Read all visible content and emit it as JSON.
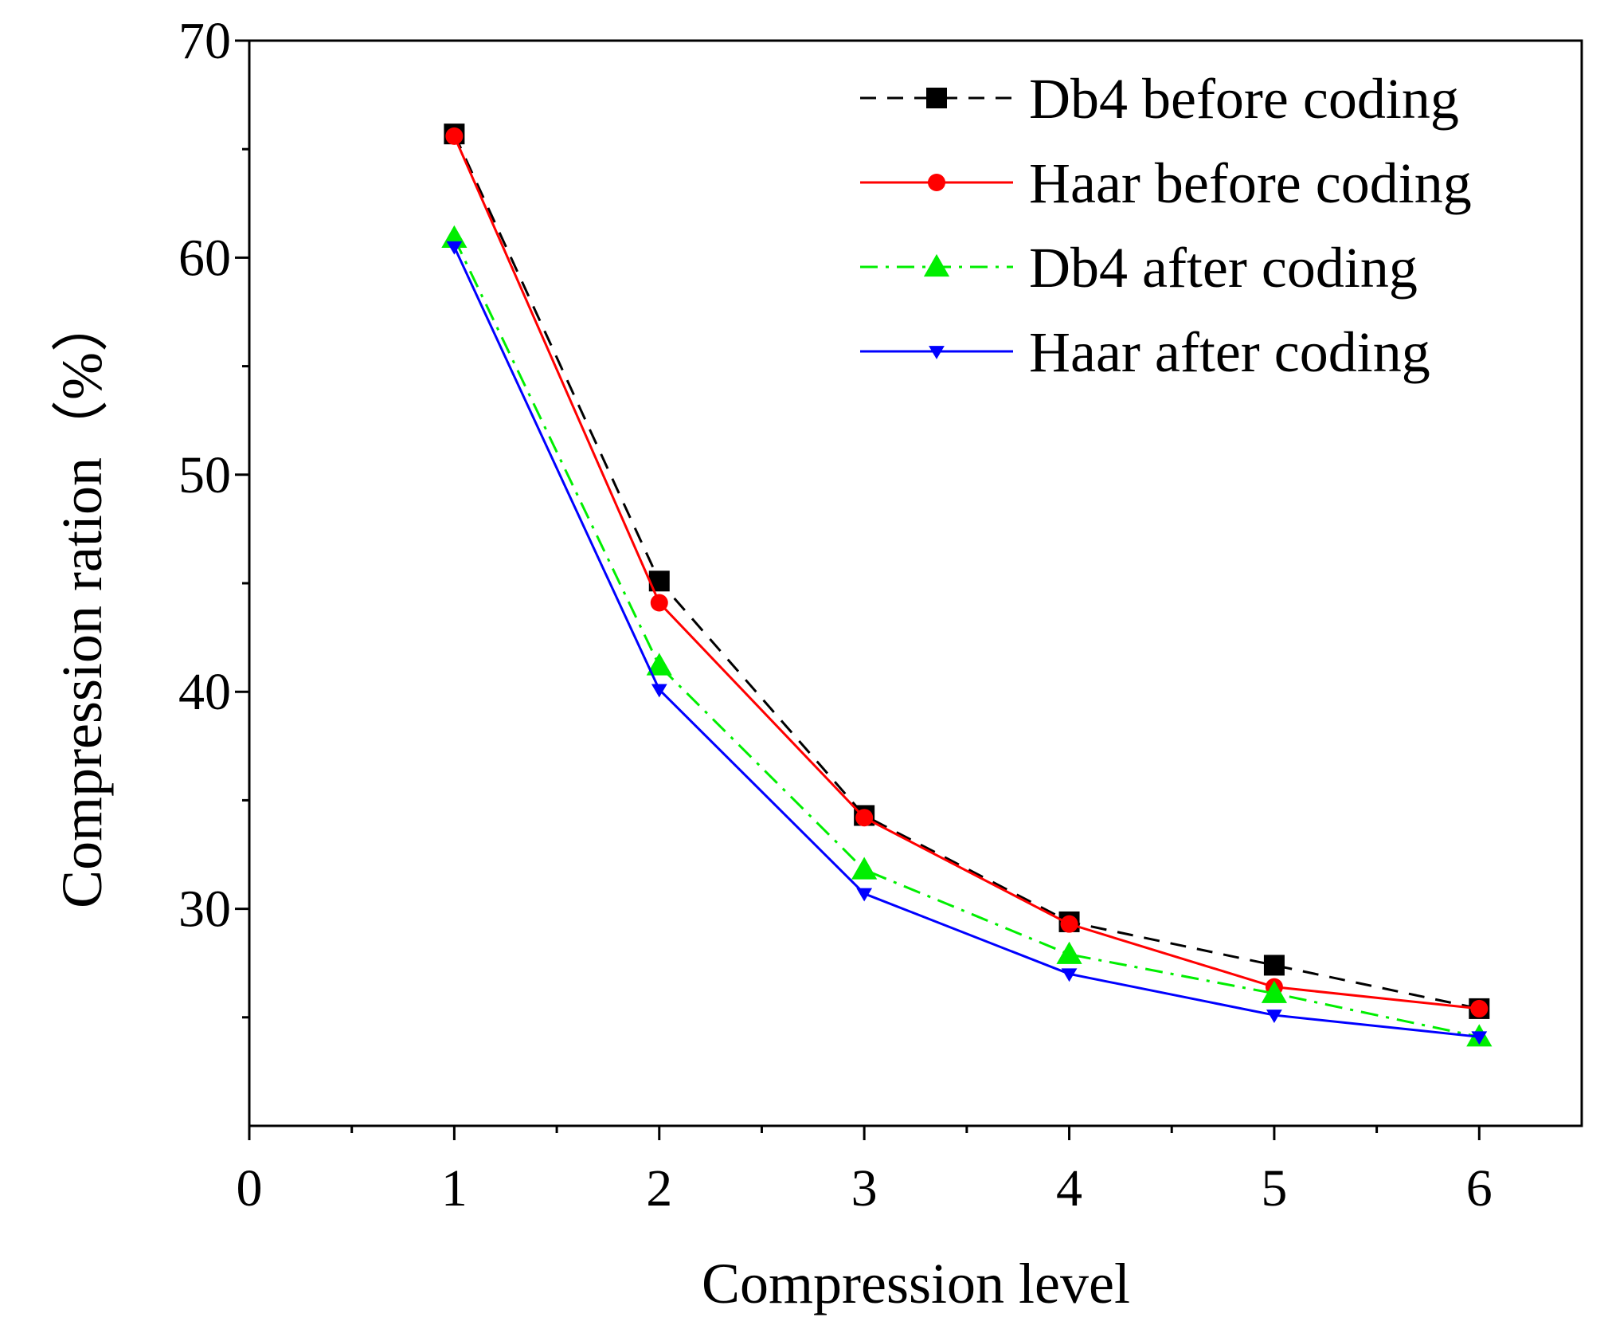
{
  "chart_data": {
    "type": "line",
    "title": "",
    "xlabel": "Compression level",
    "ylabel": "Compression ration（%）",
    "xlim": [
      0,
      6.5
    ],
    "ylim": [
      20,
      70
    ],
    "x_ticks": [
      "0",
      "1",
      "2",
      "3",
      "4",
      "5",
      "6"
    ],
    "y_ticks": [
      "30",
      "40",
      "50",
      "60",
      "70"
    ],
    "grid": false,
    "legend_position": "top-right",
    "x": [
      1,
      2,
      3,
      4,
      5,
      6
    ],
    "series": [
      {
        "name": "Db4 before coding",
        "color": "#000000",
        "line": "dash",
        "marker": "square",
        "values": [
          65.7,
          45.1,
          34.3,
          29.4,
          27.4,
          25.4
        ]
      },
      {
        "name": "Haar before coding",
        "color": "#ff0000",
        "line": "solid",
        "marker": "circle",
        "values": [
          65.6,
          44.1,
          34.2,
          29.3,
          26.4,
          25.4
        ]
      },
      {
        "name": "Db4 after coding",
        "color": "#00ee00",
        "line": "dashdot",
        "marker": "triangle-up",
        "values": [
          60.9,
          41.2,
          31.8,
          27.9,
          26.1,
          24.1
        ]
      },
      {
        "name": "Haar after coding",
        "color": "#0000ff",
        "line": "solid",
        "marker": "triangle-down",
        "values": [
          60.5,
          40.1,
          30.7,
          27.0,
          25.1,
          24.1
        ]
      }
    ]
  }
}
